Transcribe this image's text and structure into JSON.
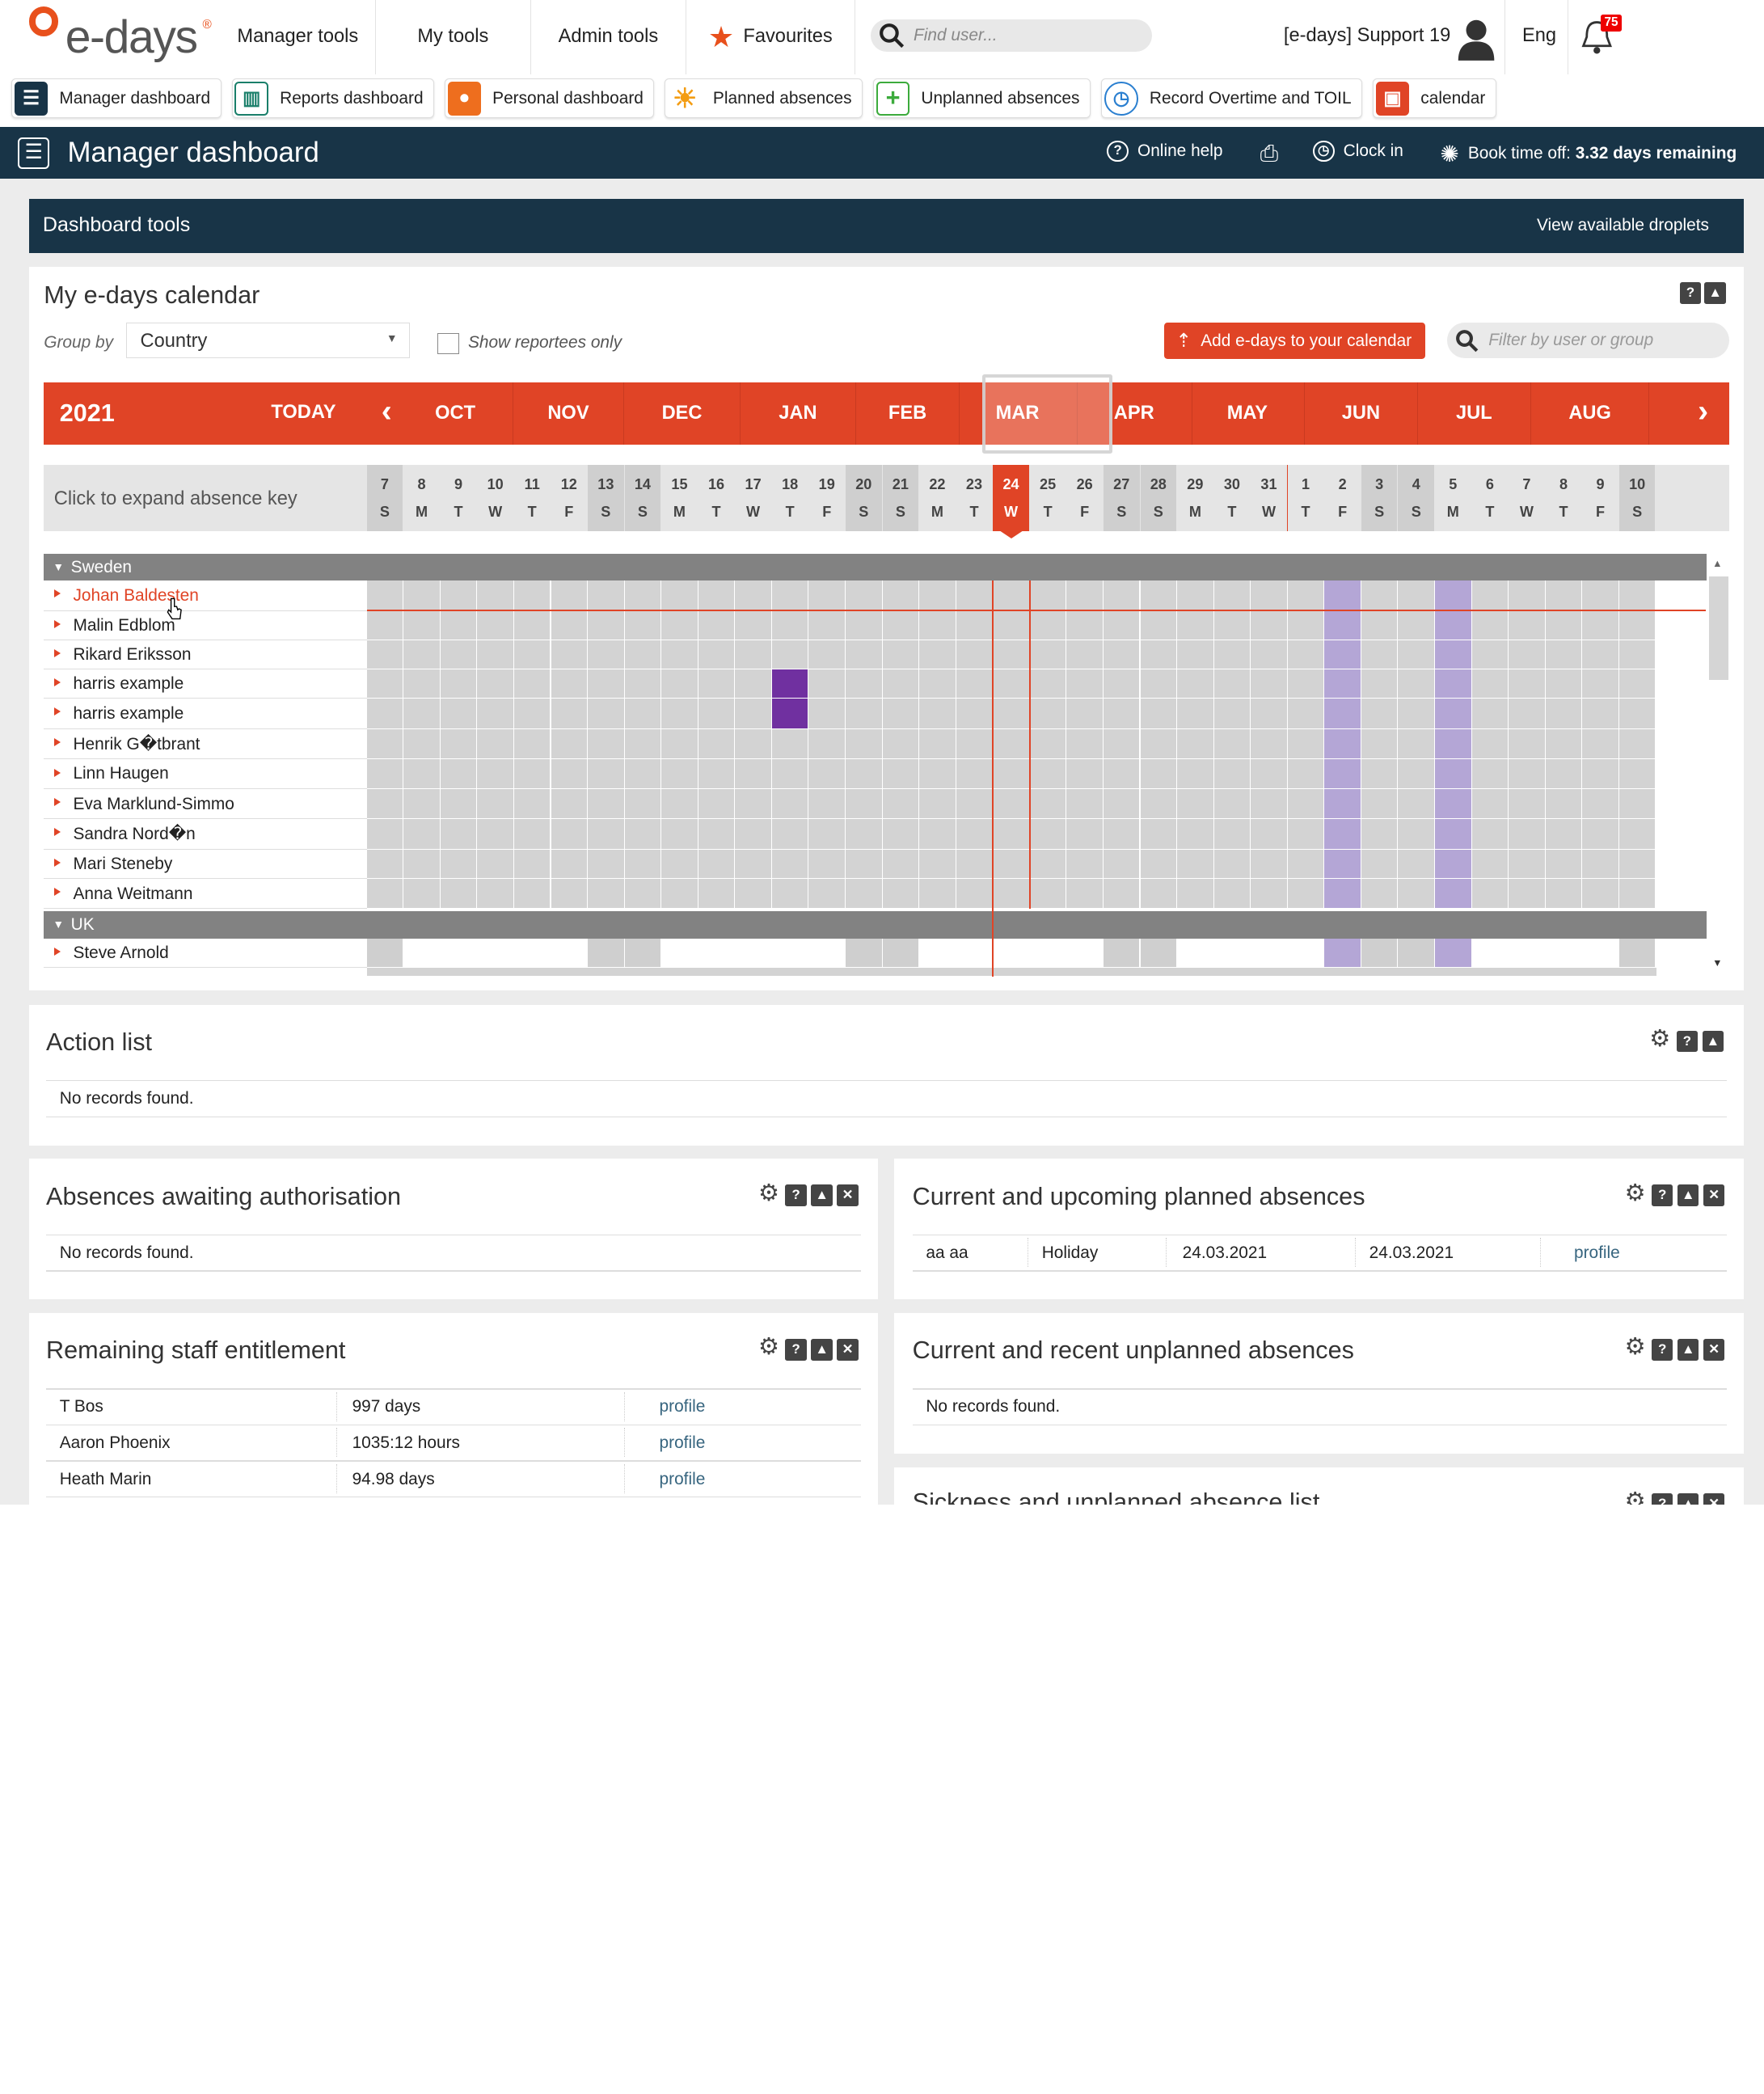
{
  "top_nav": {
    "logo": "e-days",
    "items": [
      "Manager tools",
      "My tools",
      "Admin tools"
    ],
    "favourites": "Favourites",
    "search_placeholder": "Find user...",
    "user": "[e-days] Support 19",
    "language": "Eng",
    "notifications": "75"
  },
  "shortcuts": [
    {
      "label": "Manager dashboard",
      "color": "#183447",
      "icon": "list-icon"
    },
    {
      "label": "Reports dashboard",
      "color": "#1a7f6a",
      "icon": "chart-icon"
    },
    {
      "label": "Personal dashboard",
      "color": "#ee6e1e",
      "icon": "person-icon"
    },
    {
      "label": "Planned absences",
      "color": "#f39c12",
      "icon": "sun-icon"
    },
    {
      "label": "Unplanned absences",
      "color": "#3cab3c",
      "icon": "plus-icon"
    },
    {
      "label": "Record Overtime and TOIL",
      "color": "#2a7fd0",
      "icon": "clock-icon"
    },
    {
      "label": "calendar",
      "color": "#e04426",
      "icon": "calendar-icon"
    }
  ],
  "title_bar": {
    "title": "Manager dashboard",
    "online_help": "Online help",
    "clock_in": "Clock in",
    "book_time_off": "Book time off: ",
    "remaining": "3.32 days remaining"
  },
  "dashboard_tools": {
    "title": "Dashboard tools",
    "link": "View available droplets"
  },
  "calendar": {
    "title": "My e-days calendar",
    "group_by_label": "Group by",
    "group_by_value": "Country",
    "show_reportees": "Show reportees only",
    "add_button": "Add e-days to your calendar",
    "filter_placeholder": "Filter by user or group",
    "year": "2021",
    "today": "TODAY",
    "months": [
      "OCT",
      "NOV",
      "DEC",
      "JAN",
      "FEB",
      "MAR",
      "APR",
      "MAY",
      "JUN",
      "JUL",
      "AUG"
    ],
    "expand_key": "Click to expand absence key",
    "days": [
      {
        "n": "7",
        "d": "S"
      },
      {
        "n": "8",
        "d": "M"
      },
      {
        "n": "9",
        "d": "T"
      },
      {
        "n": "10",
        "d": "W"
      },
      {
        "n": "11",
        "d": "T"
      },
      {
        "n": "12",
        "d": "F"
      },
      {
        "n": "13",
        "d": "S"
      },
      {
        "n": "14",
        "d": "S"
      },
      {
        "n": "15",
        "d": "M"
      },
      {
        "n": "16",
        "d": "T"
      },
      {
        "n": "17",
        "d": "W"
      },
      {
        "n": "18",
        "d": "T"
      },
      {
        "n": "19",
        "d": "F"
      },
      {
        "n": "20",
        "d": "S"
      },
      {
        "n": "21",
        "d": "S"
      },
      {
        "n": "22",
        "d": "M"
      },
      {
        "n": "23",
        "d": "T"
      },
      {
        "n": "24",
        "d": "W"
      },
      {
        "n": "25",
        "d": "T"
      },
      {
        "n": "26",
        "d": "F"
      },
      {
        "n": "27",
        "d": "S"
      },
      {
        "n": "28",
        "d": "S"
      },
      {
        "n": "29",
        "d": "M"
      },
      {
        "n": "30",
        "d": "T"
      },
      {
        "n": "31",
        "d": "W"
      },
      {
        "n": "1",
        "d": "T"
      },
      {
        "n": "2",
        "d": "F"
      },
      {
        "n": "3",
        "d": "S"
      },
      {
        "n": "4",
        "d": "S"
      },
      {
        "n": "5",
        "d": "M"
      },
      {
        "n": "6",
        "d": "T"
      },
      {
        "n": "7",
        "d": "W"
      },
      {
        "n": "8",
        "d": "T"
      },
      {
        "n": "9",
        "d": "F"
      },
      {
        "n": "10",
        "d": "S"
      }
    ],
    "groups": [
      {
        "name": "Sweden",
        "employees": [
          "Johan Baldesten",
          "Malin Edblom",
          "Rikard Eriksson",
          "harris example",
          "harris example",
          "Henrik G�tbrant",
          "Linn Haugen",
          "Eva Marklund-Simmo",
          "Sandra Nord�n",
          "Mari Steneby",
          "Anna Weitmann"
        ]
      },
      {
        "name": "UK",
        "employees": [
          "Steve Arnold"
        ]
      }
    ]
  },
  "action_list": {
    "title": "Action list",
    "empty": "No records found."
  },
  "absences_awaiting": {
    "title": "Absences awaiting authorisation",
    "empty": "No records found."
  },
  "planned_absences": {
    "title": "Current and upcoming planned absences",
    "rows": [
      {
        "name": "aa aa",
        "type": "Holiday",
        "start": "24.03.2021",
        "end": "24.03.2021",
        "link": "profile"
      }
    ]
  },
  "entitlement": {
    "title": "Remaining staff entitlement",
    "rows": [
      {
        "name": "T Bos",
        "value": "997 days",
        "link": "profile"
      },
      {
        "name": "Aaron Phoenix",
        "value": "1035:12 hours",
        "link": "profile"
      },
      {
        "name": "Heath Marin",
        "value": "94.98 days",
        "link": "profile"
      }
    ]
  },
  "unplanned_absences": {
    "title": "Current and recent unplanned absences",
    "empty": "No records found."
  },
  "sickness": {
    "title": "Sickness and unplanned absence list"
  }
}
